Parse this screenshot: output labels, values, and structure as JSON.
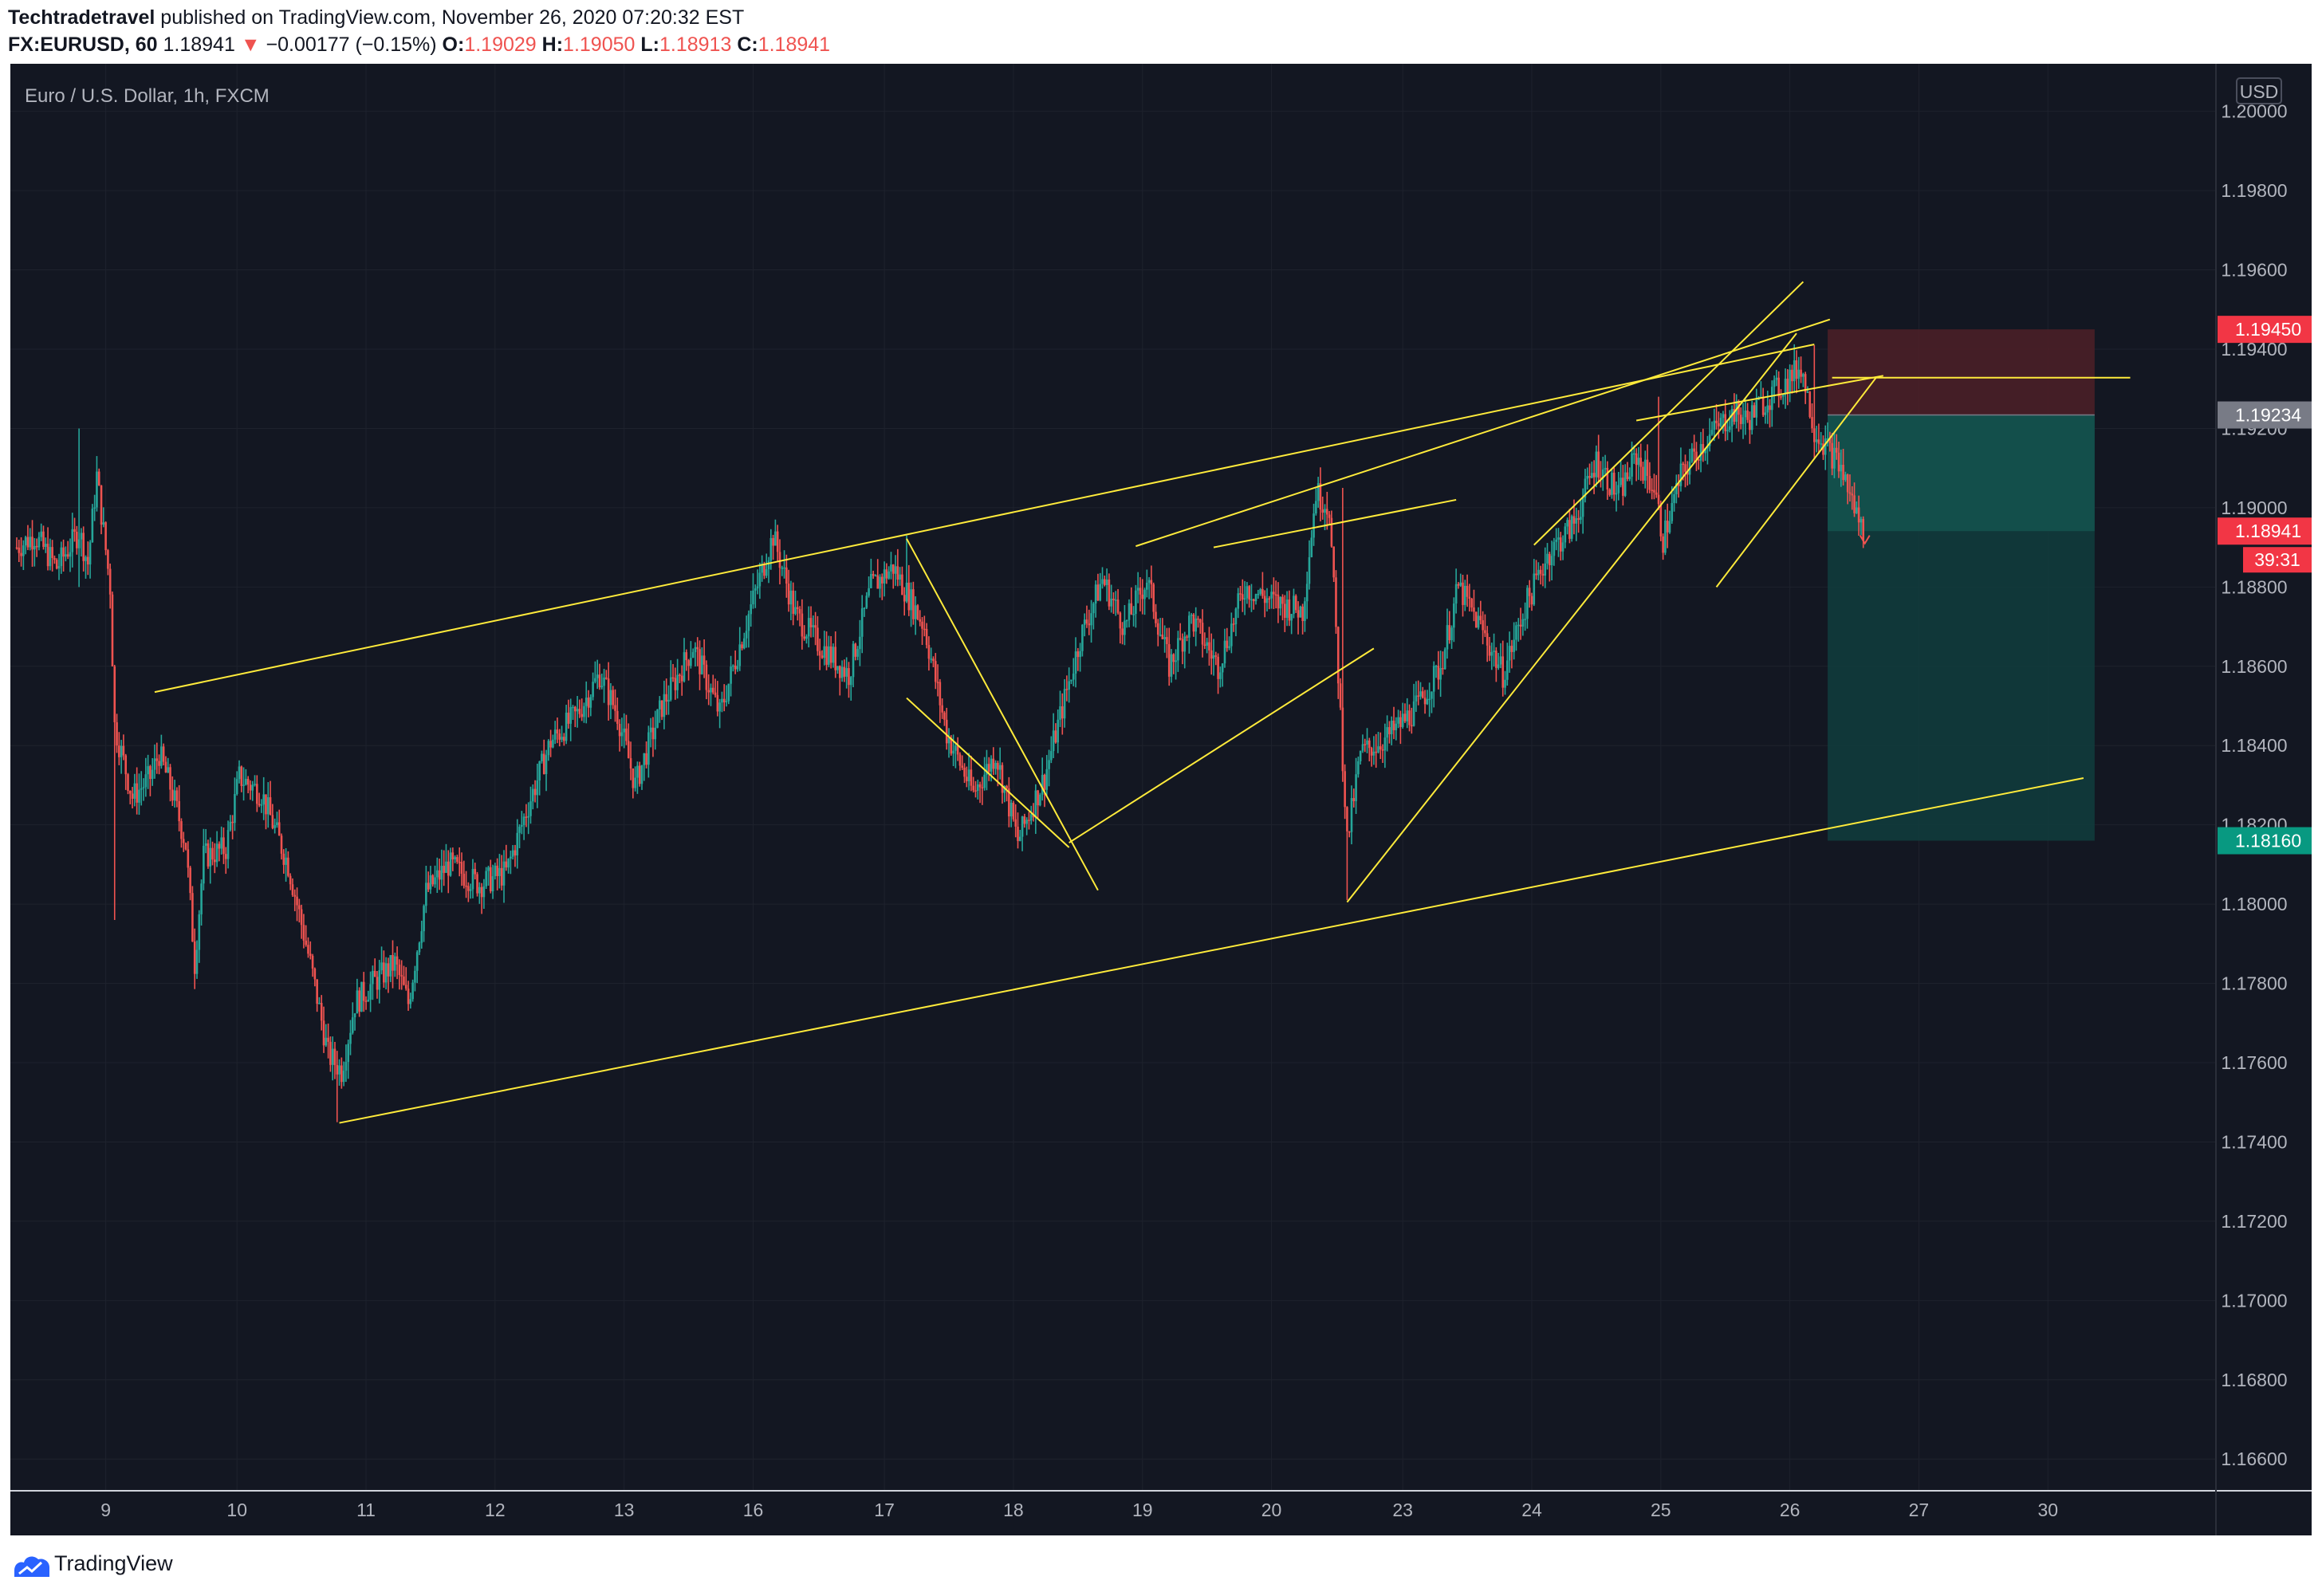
{
  "header": {
    "author": "Techtradetravel",
    "published_text": "published on TradingView.com, November 26, 2020 07:20:32 EST",
    "symbol": "FX:EURUSD, 60",
    "last": "1.18941",
    "change_arrow": "▼",
    "change": "−0.00177 (−0.15%)",
    "o_label": "O:",
    "o": "1.19029",
    "h_label": "H:",
    "h": "1.19050",
    "l_label": "L:",
    "l": "1.18913",
    "c_label": "C:",
    "c": "1.18941"
  },
  "chart": {
    "instrument_title": "Euro / U.S. Dollar, 1h, FXCM",
    "currency": "USD",
    "price_ticks": [
      "1.20000",
      "1.19800",
      "1.19600",
      "1.19400",
      "1.19200",
      "1.19000",
      "1.18800",
      "1.18600",
      "1.18400",
      "1.18200",
      "1.18000",
      "1.17800",
      "1.17600",
      "1.17400",
      "1.17200",
      "1.17000",
      "1.16800",
      "1.16600"
    ],
    "date_ticks": [
      "9",
      "10",
      "11",
      "12",
      "13",
      "16",
      "17",
      "18",
      "19",
      "20",
      "23",
      "24",
      "25",
      "26",
      "27",
      "30"
    ],
    "badges": {
      "stop_price": "1.19450",
      "entry_price": "1.19234",
      "last_price": "1.18941",
      "countdown": "39:31",
      "target_price": "1.18160"
    },
    "colors": {
      "background": "#131722",
      "up": "#26a69a",
      "down": "#ef5350",
      "trendline": "#ffeb3b",
      "grid": "#1e222d",
      "text": "#b2b5be",
      "stop_zone": "#4a1f27",
      "target_zone": "#113b3c"
    }
  },
  "footer": {
    "brand": "TradingView",
    "logo_icon": "tradingview-cloud-icon"
  },
  "chart_data": {
    "type": "candlestick",
    "timeframe": "1h",
    "series_path": [
      [
        0,
        1.189
      ],
      [
        8,
        1.1893
      ],
      [
        18,
        1.1885
      ],
      [
        28,
        1.1894
      ],
      [
        32,
        1.1886
      ],
      [
        36,
        1.1908
      ],
      [
        42,
        1.188
      ],
      [
        44,
        1.1845
      ],
      [
        52,
        1.1827
      ],
      [
        60,
        1.1832
      ],
      [
        64,
        1.1838
      ],
      [
        70,
        1.1828
      ],
      [
        76,
        1.1815
      ],
      [
        80,
        1.1785
      ],
      [
        84,
        1.1812
      ],
      [
        94,
        1.1814
      ],
      [
        100,
        1.1832
      ],
      [
        110,
        1.1828
      ],
      [
        122,
        1.181
      ],
      [
        132,
        1.1785
      ],
      [
        140,
        1.1762
      ],
      [
        146,
        1.1758
      ],
      [
        152,
        1.1775
      ],
      [
        160,
        1.178
      ],
      [
        170,
        1.1785
      ],
      [
        176,
        1.1775
      ],
      [
        184,
        1.1803
      ],
      [
        194,
        1.181
      ],
      [
        208,
        1.1805
      ],
      [
        220,
        1.1808
      ],
      [
        230,
        1.1825
      ],
      [
        240,
        1.1841
      ],
      [
        252,
        1.1848
      ],
      [
        262,
        1.1858
      ],
      [
        270,
        1.1848
      ],
      [
        278,
        1.183
      ],
      [
        290,
        1.185
      ],
      [
        304,
        1.1865
      ],
      [
        316,
        1.1848
      ],
      [
        330,
        1.1875
      ],
      [
        340,
        1.1893
      ],
      [
        350,
        1.1873
      ],
      [
        360,
        1.1866
      ],
      [
        374,
        1.1858
      ],
      [
        384,
        1.188
      ],
      [
        394,
        1.1885
      ],
      [
        408,
        1.187
      ],
      [
        418,
        1.1843
      ],
      [
        430,
        1.1828
      ],
      [
        440,
        1.1838
      ],
      [
        450,
        1.1816
      ],
      [
        462,
        1.1832
      ],
      [
        478,
        1.1867
      ],
      [
        488,
        1.1882
      ],
      [
        498,
        1.187
      ],
      [
        508,
        1.1882
      ],
      [
        518,
        1.186
      ],
      [
        528,
        1.1872
      ],
      [
        540,
        1.186
      ],
      [
        552,
        1.188
      ],
      [
        566,
        1.1876
      ],
      [
        578,
        1.1874
      ],
      [
        584,
        1.1904
      ],
      [
        590,
        1.19
      ],
      [
        598,
        1.1816
      ],
      [
        604,
        1.1838
      ],
      [
        616,
        1.1842
      ],
      [
        630,
        1.185
      ],
      [
        640,
        1.186
      ],
      [
        648,
        1.188
      ],
      [
        658,
        1.187
      ],
      [
        668,
        1.1858
      ],
      [
        678,
        1.1875
      ],
      [
        688,
        1.1888
      ],
      [
        700,
        1.1896
      ],
      [
        710,
        1.1912
      ],
      [
        720,
        1.1903
      ],
      [
        728,
        1.1913
      ],
      [
        736,
        1.1905
      ],
      [
        740,
        1.1892
      ],
      [
        748,
        1.1908
      ],
      [
        756,
        1.1915
      ],
      [
        764,
        1.192
      ],
      [
        772,
        1.1924
      ],
      [
        778,
        1.1922
      ],
      [
        782,
        1.1925
      ],
      [
        788,
        1.1928
      ],
      [
        796,
        1.1932
      ],
      [
        802,
        1.1936
      ],
      [
        808,
        1.192
      ],
      [
        814,
        1.1915
      ],
      [
        820,
        1.191
      ],
      [
        826,
        1.19
      ],
      [
        830,
        1.1894
      ]
    ],
    "events": [
      {
        "bar": 28,
        "high": 1.192,
        "low": 1.188
      },
      {
        "bar": 44,
        "low": 1.1796
      },
      {
        "bar": 80,
        "low": 1.178
      },
      {
        "bar": 144,
        "low": 1.1745
      },
      {
        "bar": 400,
        "high": 1.1893
      },
      {
        "bar": 598,
        "low": 1.1801
      },
      {
        "bar": 596,
        "high": 1.1905
      },
      {
        "bar": 738,
        "high": 1.1928
      },
      {
        "bar": 808,
        "high": 1.1941
      }
    ],
    "trendlines": [
      {
        "p1": [
          62,
          1.18535
        ],
        "p2": [
          808,
          1.19412
        ]
      },
      {
        "p1": [
          145,
          1.17448
        ],
        "p2": [
          929,
          1.18318
        ]
      },
      {
        "p1": [
          400,
          1.18922
        ],
        "p2": [
          486,
          1.18035
        ]
      },
      {
        "p1": [
          400,
          1.1852
        ],
        "p2": [
          473,
          1.18143
        ]
      },
      {
        "p1": [
          473,
          1.18155
        ],
        "p2": [
          610,
          1.18645
        ]
      },
      {
        "p1": [
          503,
          1.18903
        ],
        "p2": [
          815,
          1.19475
        ]
      },
      {
        "p1": [
          538,
          1.189
        ],
        "p2": [
          647,
          1.1902
        ]
      },
      {
        "p1": [
          598,
          1.18005
        ],
        "p2": [
          800,
          1.1944
        ]
      },
      {
        "p1": [
          682,
          1.18906
        ],
        "p2": [
          803,
          1.1957
        ]
      },
      {
        "p1": [
          728,
          1.1922
        ],
        "p2": [
          839,
          1.19333
        ]
      },
      {
        "p1": [
          764,
          1.188
        ],
        "p2": [
          836,
          1.1933
        ]
      },
      {
        "p1": [
          816,
          1.19328
        ],
        "p2": [
          950,
          1.19328
        ]
      }
    ],
    "position": {
      "side": "short",
      "entry": 1.19234,
      "stop": 1.1945,
      "target": 1.1816,
      "last": 1.18941,
      "start_bar": 814,
      "end_bar": 934
    },
    "x_tick_bars": {
      "9": 40,
      "10": 99,
      "11": 157,
      "12": 215,
      "13": 273,
      "16": 331,
      "17": 390,
      "18": 448,
      "19": 506,
      "20": 564,
      "23": 623,
      "24": 681,
      "25": 739,
      "26": 797,
      "27": 855,
      "30": 913
    },
    "ylim": [
      1.1652,
      1.2012
    ],
    "bars": 960
  }
}
